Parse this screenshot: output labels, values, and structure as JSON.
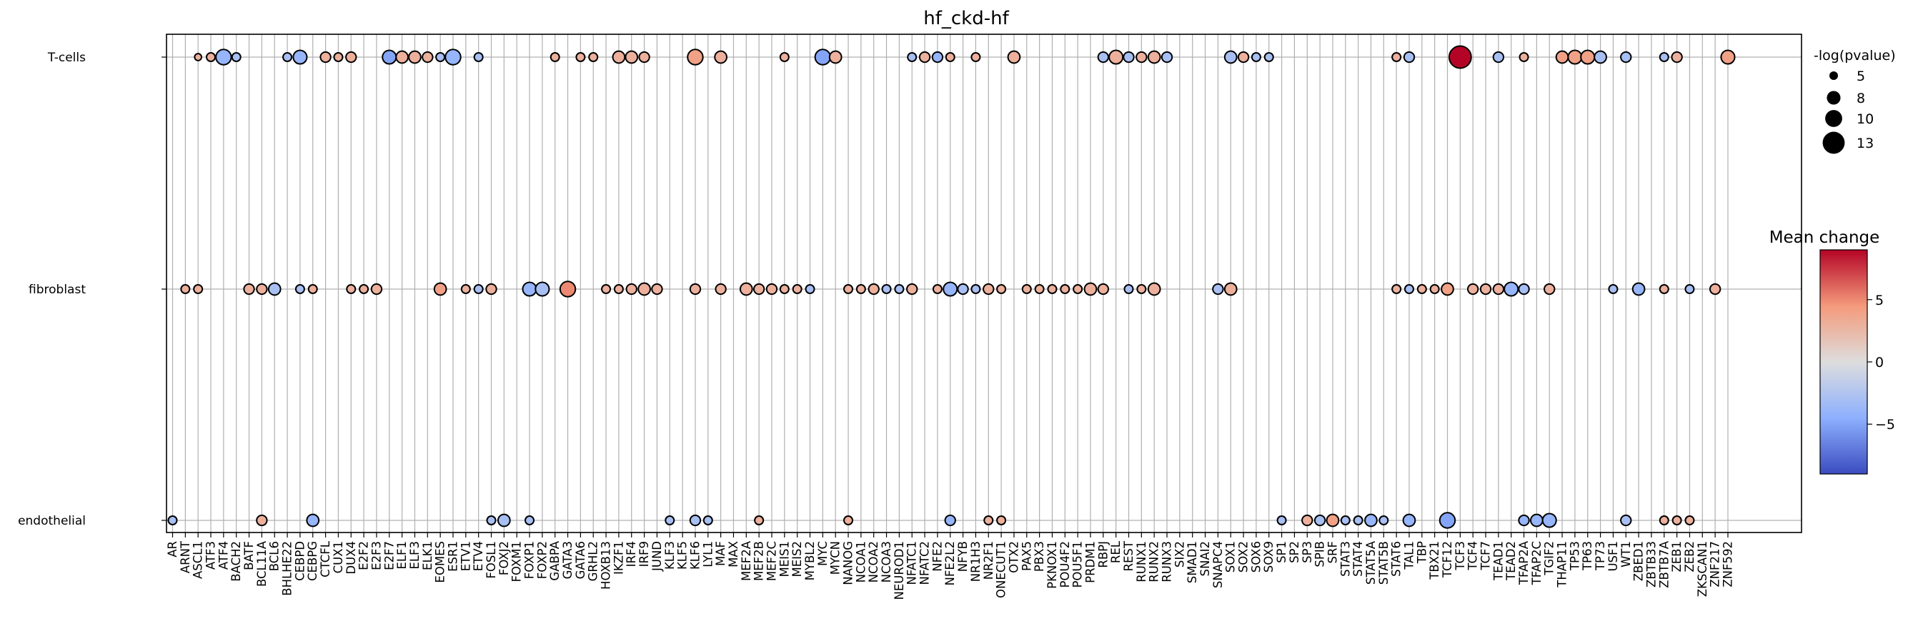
{
  "chart_data": {
    "type": "dotplot",
    "title": "hf_ckd-hf",
    "rows": [
      "T-cells",
      "fibroblast",
      "endothelial"
    ],
    "columns": [
      "AR",
      "ARNT",
      "ASCL1",
      "ATF3",
      "ATF4",
      "BACH2",
      "BATF",
      "BCL11A",
      "BCL6",
      "BHLHE22",
      "CEBPD",
      "CEBPG",
      "CTCFL",
      "CUX1",
      "DUX4",
      "E2F2",
      "E2F3",
      "E2F7",
      "ELF1",
      "ELF3",
      "ELK1",
      "EOMES",
      "ESR1",
      "ETV1",
      "ETV4",
      "FOSL1",
      "FOXJ2",
      "FOXM1",
      "FOXP1",
      "FOXP2",
      "GABPA",
      "GATA3",
      "GATA6",
      "GRHL2",
      "HOXB13",
      "IKZF1",
      "IRF4",
      "IRF9",
      "JUND",
      "KLF3",
      "KLF5",
      "KLF6",
      "LYL1",
      "MAF",
      "MAX",
      "MEF2A",
      "MEF2B",
      "MEF2C",
      "MEIS1",
      "MEIS2",
      "MYBL2",
      "MYC",
      "MYCN",
      "NANOG",
      "NCOA1",
      "NCOA2",
      "NCOA3",
      "NEUROD1",
      "NFATC1",
      "NFATC2",
      "NFE2",
      "NFE2L2",
      "NFYB",
      "NR1H3",
      "NR2F1",
      "ONECUT1",
      "OTX2",
      "PAX5",
      "PBX3",
      "PKNOX1",
      "POU4F2",
      "POU5F1",
      "PRDM1",
      "RBPJ",
      "REL",
      "REST",
      "RUNX1",
      "RUNX2",
      "RUNX3",
      "SIX2",
      "SMAD1",
      "SNAI2",
      "SNAPC4",
      "SOX1",
      "SOX2",
      "SOX6",
      "SOX9",
      "SP1",
      "SP2",
      "SP3",
      "SPIB",
      "SRF",
      "STAT3",
      "STAT4",
      "STAT5A",
      "STAT5B",
      "STAT6",
      "TAL1",
      "TBP",
      "TBX21",
      "TCF12",
      "TCF3",
      "TCF4",
      "TCF7",
      "TEAD1",
      "TEAD2",
      "TFAP2A",
      "TFAP2C",
      "TGIF2",
      "THAP11",
      "TP53",
      "TP63",
      "TP73",
      "USF1",
      "WT1",
      "ZBED1",
      "ZBTB33",
      "ZBTB7A",
      "ZEB1",
      "ZEB2",
      "ZKSCAN1",
      "ZNF217",
      "ZNF592"
    ],
    "points": {
      "T-cells": [
        [
          "ASCL1",
          4,
          3
        ],
        [
          "ATF3",
          5,
          3
        ],
        [
          "ATF4",
          9,
          -4
        ],
        [
          "BACH2",
          5,
          -3
        ],
        [
          "BHLHE22",
          5,
          -3
        ],
        [
          "CEBPD",
          8,
          -4
        ],
        [
          "CTCFL",
          6,
          3
        ],
        [
          "CUX1",
          5,
          3
        ],
        [
          "DUX4",
          6,
          3
        ],
        [
          "E2F7",
          8,
          -5
        ],
        [
          "ELF1",
          7,
          3
        ],
        [
          "ELF3",
          7,
          3
        ],
        [
          "ELK1",
          6,
          3
        ],
        [
          "EOMES",
          5,
          -3
        ],
        [
          "ESR1",
          9,
          -4
        ],
        [
          "ETV4",
          5,
          -3
        ],
        [
          "GABPA",
          5,
          3
        ],
        [
          "GATA6",
          5,
          3
        ],
        [
          "GRHL2",
          5,
          3
        ],
        [
          "IKZF1",
          7,
          3
        ],
        [
          "IRF4",
          7,
          3
        ],
        [
          "IRF9",
          6,
          3
        ],
        [
          "KLF6",
          9,
          4
        ],
        [
          "MAF",
          7,
          3
        ],
        [
          "MEIS1",
          5,
          3
        ],
        [
          "MYC",
          9,
          -5
        ],
        [
          "MYCN",
          7,
          3
        ],
        [
          "NFATC1",
          5,
          -3
        ],
        [
          "NFATC2",
          6,
          3
        ],
        [
          "NFE2",
          6,
          -4
        ],
        [
          "NFE2L2",
          5,
          3
        ],
        [
          "NR1H3",
          5,
          3
        ],
        [
          "OTX2",
          7,
          3
        ],
        [
          "RBPJ",
          6,
          -3
        ],
        [
          "REL",
          8,
          3
        ],
        [
          "REST",
          6,
          -3
        ],
        [
          "RUNX1",
          6,
          3
        ],
        [
          "RUNX2",
          7,
          3
        ],
        [
          "RUNX3",
          6,
          -3
        ],
        [
          "SOX1",
          7,
          -3
        ],
        [
          "SOX2",
          6,
          3
        ],
        [
          "SOX6",
          5,
          -3
        ],
        [
          "SOX9",
          5,
          -3
        ],
        [
          "STAT6",
          5,
          3
        ],
        [
          "TAL1",
          6,
          -3
        ],
        [
          "TCF3",
          13,
          9
        ],
        [
          "TEAD1",
          6,
          -3
        ],
        [
          "TFAP2A",
          5,
          3
        ],
        [
          "THAP11",
          7,
          4
        ],
        [
          "TP53",
          8,
          4
        ],
        [
          "TP63",
          8,
          4
        ],
        [
          "TP73",
          7,
          -3
        ],
        [
          "WT1",
          6,
          -3
        ],
        [
          "ZBTB7A",
          5,
          -3
        ],
        [
          "ZEB1",
          6,
          3
        ],
        [
          "ZNF592",
          8,
          4
        ]
      ],
      "fibroblast": [
        [
          "ARNT",
          5,
          3
        ],
        [
          "ASCL1",
          5,
          3
        ],
        [
          "BATF",
          6,
          3
        ],
        [
          "BCL11A",
          6,
          3
        ],
        [
          "BCL6",
          7,
          -3
        ],
        [
          "CEBPD",
          5,
          -3
        ],
        [
          "CEBPG",
          5,
          3
        ],
        [
          "DUX4",
          5,
          3
        ],
        [
          "E2F2",
          5,
          3
        ],
        [
          "E2F3",
          6,
          3
        ],
        [
          "EOMES",
          7,
          4
        ],
        [
          "ETV1",
          5,
          3
        ],
        [
          "ETV4",
          5,
          -3
        ],
        [
          "FOSL1",
          6,
          3
        ],
        [
          "FOXP1",
          8,
          -4
        ],
        [
          "FOXP2",
          8,
          -3
        ],
        [
          "GATA3",
          9,
          5
        ],
        [
          "HOXB13",
          5,
          3
        ],
        [
          "IKZF1",
          5,
          3
        ],
        [
          "IRF4",
          6,
          3
        ],
        [
          "IRF9",
          7,
          3
        ],
        [
          "JUND",
          6,
          3
        ],
        [
          "KLF6",
          6,
          3
        ],
        [
          "MAF",
          6,
          3
        ],
        [
          "MEF2A",
          7,
          3
        ],
        [
          "MEF2B",
          6,
          3
        ],
        [
          "MEF2C",
          6,
          3
        ],
        [
          "MEIS1",
          5,
          3
        ],
        [
          "MEIS2",
          5,
          3
        ],
        [
          "MYBL2",
          5,
          -3
        ],
        [
          "NANOG",
          5,
          3
        ],
        [
          "NCOA1",
          5,
          3
        ],
        [
          "NCOA2",
          6,
          3
        ],
        [
          "NCOA3",
          5,
          -3
        ],
        [
          "NEUROD1",
          5,
          -3
        ],
        [
          "NFATC1",
          6,
          3
        ],
        [
          "NFE2",
          5,
          3
        ],
        [
          "NFE2L2",
          8,
          -4
        ],
        [
          "NFYB",
          6,
          -3
        ],
        [
          "NR1H3",
          5,
          -3
        ],
        [
          "NR2F1",
          6,
          3
        ],
        [
          "ONECUT1",
          5,
          3
        ],
        [
          "PAX5",
          5,
          3
        ],
        [
          "PBX3",
          5,
          3
        ],
        [
          "PKNOX1",
          5,
          3
        ],
        [
          "POU4F2",
          5,
          3
        ],
        [
          "POU5F1",
          5,
          3
        ],
        [
          "PRDM1",
          7,
          3
        ],
        [
          "RBPJ",
          6,
          3
        ],
        [
          "REST",
          5,
          -3
        ],
        [
          "RUNX1",
          5,
          3
        ],
        [
          "RUNX2",
          7,
          3
        ],
        [
          "SNAPC4",
          6,
          -3
        ],
        [
          "SOX1",
          7,
          3
        ],
        [
          "STAT6",
          5,
          3
        ],
        [
          "TAL1",
          5,
          -3
        ],
        [
          "TBP",
          5,
          3
        ],
        [
          "TBX21",
          5,
          3
        ],
        [
          "TCF12",
          7,
          4
        ],
        [
          "TCF4",
          6,
          3
        ],
        [
          "TCF7",
          6,
          3
        ],
        [
          "TEAD1",
          6,
          3
        ],
        [
          "TEAD2",
          8,
          -4
        ],
        [
          "TFAP2A",
          6,
          -3
        ],
        [
          "TGIF2",
          6,
          3
        ],
        [
          "USF1",
          5,
          -3
        ],
        [
          "ZBED1",
          7,
          -4
        ],
        [
          "ZBTB7A",
          5,
          3
        ],
        [
          "ZEB2",
          5,
          -3
        ],
        [
          "ZNF217",
          6,
          3
        ]
      ],
      "endothelial": [
        [
          "AR",
          5,
          -3
        ],
        [
          "BCL11A",
          6,
          3
        ],
        [
          "CEBPG",
          7,
          -4
        ],
        [
          "FOSL1",
          5,
          -3
        ],
        [
          "FOXJ2",
          7,
          -3
        ],
        [
          "FOXP1",
          5,
          -3
        ],
        [
          "KLF3",
          5,
          -3
        ],
        [
          "KLF6",
          6,
          -3
        ],
        [
          "LYL1",
          5,
          -3
        ],
        [
          "MEF2B",
          5,
          3
        ],
        [
          "NANOG",
          5,
          3
        ],
        [
          "NFE2L2",
          6,
          -4
        ],
        [
          "NR2F1",
          5,
          3
        ],
        [
          "ONECUT1",
          5,
          3
        ],
        [
          "SP1",
          5,
          -3
        ],
        [
          "SP3",
          6,
          3
        ],
        [
          "SPIB",
          6,
          -3
        ],
        [
          "SRF",
          7,
          4
        ],
        [
          "STAT3",
          5,
          -3
        ],
        [
          "STAT4",
          5,
          -3
        ],
        [
          "STAT5A",
          7,
          -4
        ],
        [
          "STAT5B",
          5,
          -3
        ],
        [
          "TAL1",
          7,
          -4
        ],
        [
          "TCF12",
          9,
          -5
        ],
        [
          "TFAP2A",
          6,
          -4
        ],
        [
          "TFAP2C",
          7,
          -4
        ],
        [
          "TGIF2",
          8,
          -4
        ],
        [
          "WT1",
          6,
          -3
        ],
        [
          "ZBTB7A",
          5,
          3
        ],
        [
          "ZEB1",
          5,
          3
        ],
        [
          "ZEB2",
          5,
          3
        ]
      ]
    },
    "size_legend": {
      "title": "-log(pvalue)",
      "values": [
        "5",
        "8",
        "10",
        "13"
      ]
    },
    "color_legend": {
      "title": "Mean change",
      "ticks": [
        "5",
        "0",
        "−5"
      ],
      "vmin": -9,
      "vmax": 9,
      "colormap": "coolwarm"
    },
    "colors": {
      "low": "#3b4cc0",
      "mid": "#dddddd",
      "high": "#b40426",
      "grid": "#b0b0b0"
    }
  }
}
